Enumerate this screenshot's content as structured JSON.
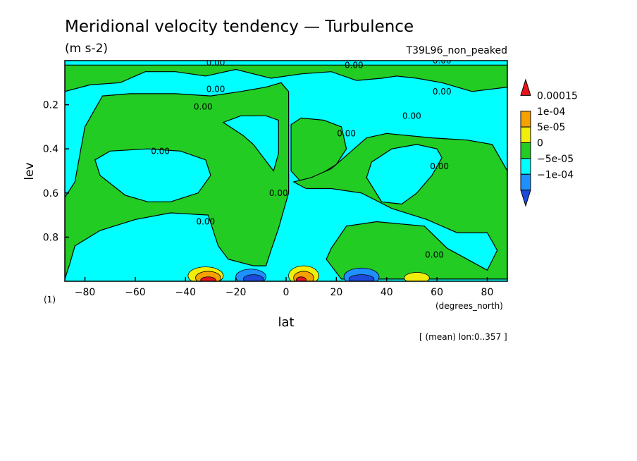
{
  "chart_data": {
    "type": "heatmap",
    "title": "Meridional velocity tendency — Turbulence",
    "units": "(m s-2)",
    "run_label": "T39L96_non_peaked",
    "xlabel": "lat",
    "x_units": "(degrees_north)",
    "ylabel": "lev",
    "y_units": "(1)",
    "footnote": "[ (mean) lon:0..357 ]",
    "xlim": [
      -88,
      88
    ],
    "ylim": [
      1.0,
      0.0
    ],
    "x_ticks": [
      -80,
      -60,
      -40,
      -20,
      0,
      20,
      40,
      60,
      80
    ],
    "x_tick_labels": [
      "−80",
      "−60",
      "−40",
      "−20",
      "0",
      "20",
      "40",
      "60",
      "80"
    ],
    "y_ticks": [
      0.2,
      0.4,
      0.6,
      0.8
    ],
    "y_tick_labels": [
      "0.2",
      "0.4",
      "0.6",
      "0.8"
    ],
    "contour_label_text": "0.00",
    "contour_labels": [
      {
        "text": "0.00",
        "lat": -33,
        "lev": 0.21
      },
      {
        "text": "0.00",
        "lat": -28,
        "lev": 0.13
      },
      {
        "text": "0.00",
        "lat": -50,
        "lev": 0.41
      },
      {
        "text": "0.00",
        "lat": -32,
        "lev": 0.73
      },
      {
        "text": "0.00",
        "lat": -3,
        "lev": 0.6
      },
      {
        "text": "0.00",
        "lat": 24,
        "lev": 0.33
      },
      {
        "text": "0.00",
        "lat": 50,
        "lev": 0.25
      },
      {
        "text": "0.00",
        "lat": 62,
        "lev": 0.14
      },
      {
        "text": "0.00",
        "lat": 61,
        "lev": 0.48
      },
      {
        "text": "0.00",
        "lat": 59,
        "lev": 0.88
      },
      {
        "text": "0.00",
        "lat": -28,
        "lev": 0.01
      },
      {
        "text": "0.00",
        "lat": 27,
        "lev": 0.02
      },
      {
        "text": "0.00",
        "lat": 62,
        "lev": 0.0
      }
    ],
    "colorbar": {
      "levels": [
        "0.00015",
        "1e-04",
        "5e-05",
        "0",
        "−5e-05",
        "−1e-04"
      ],
      "colors": [
        "#e8141c",
        "#f5a100",
        "#f0ee0a",
        "#22cc22",
        "#00ffff",
        "#1e90ff",
        "#1c4bdc"
      ]
    },
    "field": {
      "background_fill": "#00ffff",
      "positive_regions": [
        {
          "fill": "#22cc22",
          "points": [
            [
              -88,
              0.99
            ],
            [
              -88,
              0.62
            ],
            [
              -84,
              0.55
            ],
            [
              -80,
              0.3
            ],
            [
              -73,
              0.16
            ],
            [
              -62,
              0.15
            ],
            [
              -44,
              0.15
            ],
            [
              -30,
              0.16
            ],
            [
              -18,
              0.14
            ],
            [
              -8,
              0.12
            ],
            [
              -2,
              0.1
            ],
            [
              1,
              0.14
            ],
            [
              1,
              0.6
            ],
            [
              -1,
              0.68
            ],
            [
              -3,
              0.76
            ],
            [
              -6,
              0.86
            ],
            [
              -8,
              0.93
            ],
            [
              -13,
              0.93
            ],
            [
              -23,
              0.9
            ],
            [
              -27,
              0.84
            ],
            [
              -31,
              0.7
            ],
            [
              -46,
              0.69
            ],
            [
              -60,
              0.72
            ],
            [
              -74,
              0.77
            ],
            [
              -84,
              0.84
            ],
            [
              -86,
              0.92
            ]
          ]
        },
        {
          "fill": "#00ffff",
          "points": [
            [
              -76,
              0.45
            ],
            [
              -74,
              0.52
            ],
            [
              -64,
              0.61
            ],
            [
              -55,
              0.64
            ],
            [
              -46,
              0.64
            ],
            [
              -35,
              0.6
            ],
            [
              -30,
              0.52
            ],
            [
              -32,
              0.45
            ],
            [
              -42,
              0.41
            ],
            [
              -55,
              0.4
            ],
            [
              -70,
              0.41
            ]
          ]
        },
        {
          "fill": "#00ffff",
          "points": [
            [
              -25,
              0.28
            ],
            [
              -17,
              0.34
            ],
            [
              -13,
              0.38
            ],
            [
              -9,
              0.44
            ],
            [
              -5,
              0.5
            ],
            [
              -3,
              0.42
            ],
            [
              -3,
              0.27
            ],
            [
              -8,
              0.25
            ],
            [
              -18,
              0.25
            ]
          ]
        },
        {
          "fill": "#22cc22",
          "points": [
            [
              2,
              0.29
            ],
            [
              6,
              0.26
            ],
            [
              15,
              0.27
            ],
            [
              22,
              0.3
            ],
            [
              24,
              0.4
            ],
            [
              20,
              0.47
            ],
            [
              13,
              0.52
            ],
            [
              6,
              0.55
            ],
            [
              2,
              0.5
            ]
          ]
        },
        {
          "fill": "#22cc22",
          "points": [
            [
              3,
              0.55
            ],
            [
              10,
              0.53
            ],
            [
              18,
              0.49
            ],
            [
              26,
              0.41
            ],
            [
              32,
              0.35
            ],
            [
              40,
              0.33
            ],
            [
              58,
              0.35
            ],
            [
              72,
              0.36
            ],
            [
              82,
              0.38
            ],
            [
              88,
              0.5
            ],
            [
              88,
              0.99
            ],
            [
              70,
              0.99
            ],
            [
              50,
              0.99
            ],
            [
              35,
              0.99
            ],
            [
              22,
              0.99
            ],
            [
              16,
              0.9
            ],
            [
              18,
              0.85
            ],
            [
              24,
              0.75
            ],
            [
              36,
              0.73
            ],
            [
              55,
              0.75
            ],
            [
              64,
              0.85
            ],
            [
              72,
              0.9
            ],
            [
              80,
              0.95
            ],
            [
              84,
              0.86
            ],
            [
              80,
              0.78
            ],
            [
              68,
              0.78
            ],
            [
              56,
              0.72
            ],
            [
              42,
              0.67
            ],
            [
              30,
              0.6
            ],
            [
              18,
              0.58
            ],
            [
              8,
              0.58
            ]
          ]
        },
        {
          "fill": "#00ffff",
          "points": [
            [
              32,
              0.53
            ],
            [
              38,
              0.64
            ],
            [
              46,
              0.65
            ],
            [
              52,
              0.6
            ],
            [
              58,
              0.52
            ],
            [
              62,
              0.44
            ],
            [
              60,
              0.4
            ],
            [
              52,
              0.38
            ],
            [
              42,
              0.4
            ],
            [
              34,
              0.46
            ]
          ]
        },
        {
          "fill": "#22cc22",
          "points": [
            [
              -88,
              0.02
            ],
            [
              88,
              0.02
            ],
            [
              88,
              0.12
            ],
            [
              74,
              0.14
            ],
            [
              62,
              0.1
            ],
            [
              52,
              0.08
            ],
            [
              44,
              0.07
            ],
            [
              38,
              0.08
            ],
            [
              28,
              0.09
            ],
            [
              18,
              0.05
            ],
            [
              6,
              0.06
            ],
            [
              -6,
              0.08
            ],
            [
              -20,
              0.04
            ],
            [
              -32,
              0.07
            ],
            [
              -44,
              0.05
            ],
            [
              -56,
              0.05
            ],
            [
              -66,
              0.1
            ],
            [
              -78,
              0.11
            ],
            [
              -88,
              0.14
            ]
          ]
        }
      ],
      "extreme_blobs": [
        {
          "lat": -32,
          "lev": 0.975,
          "rx": 7,
          "rl": 0.04,
          "fill": "#f0ee0a"
        },
        {
          "lat": -31,
          "lev": 0.985,
          "rx": 5,
          "rl": 0.03,
          "fill": "#f5a100"
        },
        {
          "lat": -31,
          "lev": 0.995,
          "rx": 3,
          "rl": 0.015,
          "fill": "#e8141c"
        },
        {
          "lat": -14,
          "lev": 0.98,
          "rx": 6,
          "rl": 0.035,
          "fill": "#1e90ff"
        },
        {
          "lat": -13,
          "lev": 0.99,
          "rx": 4,
          "rl": 0.02,
          "fill": "#1c4bdc"
        },
        {
          "lat": 7,
          "lev": 0.975,
          "rx": 6,
          "rl": 0.045,
          "fill": "#f0ee0a"
        },
        {
          "lat": 7,
          "lev": 0.985,
          "rx": 4,
          "rl": 0.03,
          "fill": "#f5a100"
        },
        {
          "lat": 6,
          "lev": 0.995,
          "rx": 2,
          "rl": 0.015,
          "fill": "#e8141c"
        },
        {
          "lat": 30,
          "lev": 0.98,
          "rx": 7,
          "rl": 0.04,
          "fill": "#1e90ff"
        },
        {
          "lat": 30,
          "lev": 0.99,
          "rx": 5,
          "rl": 0.02,
          "fill": "#1c4bdc"
        },
        {
          "lat": 52,
          "lev": 0.985,
          "rx": 5,
          "rl": 0.025,
          "fill": "#f0ee0a"
        }
      ]
    }
  }
}
